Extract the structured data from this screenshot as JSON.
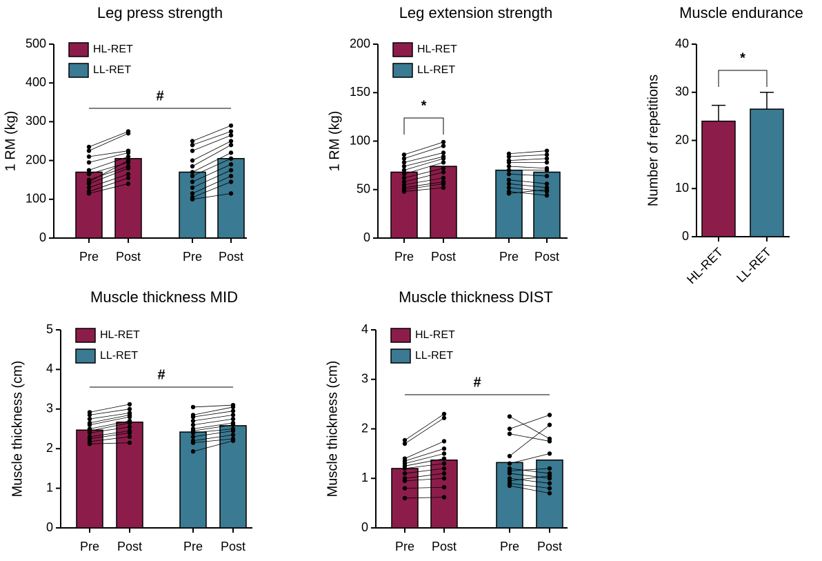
{
  "chart_data": [
    {
      "type": "bar",
      "title": "Leg press strength",
      "ylabel": "1 RM (kg)",
      "categories": [
        "Pre",
        "Post"
      ],
      "ylim": [
        0,
        500
      ],
      "yticks": [
        0,
        100,
        200,
        300,
        400,
        500
      ],
      "annotation": "#",
      "series": [
        {
          "name": "HL-RET",
          "color": "#8c1d4a",
          "values": [
            170,
            205
          ],
          "subjects": [
            [
              235,
              275
            ],
            [
              225,
              270
            ],
            [
              210,
              225
            ],
            [
              195,
              220
            ],
            [
              175,
              210
            ],
            [
              165,
              195
            ],
            [
              150,
              185
            ],
            [
              140,
              180
            ],
            [
              130,
              165
            ],
            [
              120,
              155
            ],
            [
              115,
              140
            ],
            [
              145,
              200
            ]
          ]
        },
        {
          "name": "LL-RET",
          "color": "#3a7a92",
          "values": [
            170,
            205
          ],
          "subjects": [
            [
              250,
              290
            ],
            [
              240,
              275
            ],
            [
              225,
              265
            ],
            [
              200,
              250
            ],
            [
              185,
              240
            ],
            [
              170,
              220
            ],
            [
              160,
              205
            ],
            [
              145,
              190
            ],
            [
              130,
              175
            ],
            [
              115,
              160
            ],
            [
              105,
              145
            ],
            [
              100,
              115
            ]
          ]
        }
      ]
    },
    {
      "type": "bar",
      "title": "Leg extension strength",
      "ylabel": "1 RM (kg)",
      "categories": [
        "Pre",
        "Post"
      ],
      "ylim": [
        0,
        200
      ],
      "yticks": [
        0,
        50,
        100,
        150,
        200
      ],
      "annotation": "*",
      "series": [
        {
          "name": "HL-RET",
          "color": "#8c1d4a",
          "values": [
            68,
            74
          ],
          "subjects": [
            [
              86,
              99
            ],
            [
              82,
              95
            ],
            [
              78,
              88
            ],
            [
              74,
              84
            ],
            [
              70,
              82
            ],
            [
              66,
              78
            ],
            [
              62,
              72
            ],
            [
              58,
              68
            ],
            [
              55,
              62
            ],
            [
              52,
              58
            ],
            [
              48,
              52
            ],
            [
              50,
              56
            ]
          ]
        },
        {
          "name": "LL-RET",
          "color": "#3a7a92",
          "values": [
            70,
            68
          ],
          "subjects": [
            [
              87,
              90
            ],
            [
              84,
              86
            ],
            [
              80,
              82
            ],
            [
              78,
              78
            ],
            [
              74,
              72
            ],
            [
              70,
              70
            ],
            [
              66,
              64
            ],
            [
              60,
              56
            ],
            [
              56,
              52
            ],
            [
              52,
              48
            ],
            [
              48,
              44
            ],
            [
              46,
              50
            ]
          ]
        }
      ]
    },
    {
      "type": "errorbar",
      "title": "Muscle endurance",
      "ylabel": "Number of repetitions",
      "categories": [
        "HL-RET",
        "LL-RET"
      ],
      "values": [
        24,
        26.5
      ],
      "errors": [
        3.3,
        3.5
      ],
      "colors": [
        "#8c1d4a",
        "#3a7a92"
      ],
      "ylim": [
        0,
        40
      ],
      "yticks": [
        0,
        10,
        20,
        30,
        40
      ],
      "annotation": "*"
    },
    {
      "type": "bar",
      "title": "Muscle thickness MID",
      "ylabel": "Muscle thickness (cm)",
      "categories": [
        "Pre",
        "Post"
      ],
      "ylim": [
        0,
        5
      ],
      "yticks": [
        0,
        1,
        2,
        3,
        4,
        5
      ],
      "annotation": "#",
      "series": [
        {
          "name": "HL-RET",
          "color": "#8c1d4a",
          "values": [
            2.47,
            2.67
          ],
          "subjects": [
            [
              2.92,
              3.12
            ],
            [
              2.85,
              3.0
            ],
            [
              2.75,
              2.9
            ],
            [
              2.65,
              2.85
            ],
            [
              2.6,
              2.8
            ],
            [
              2.5,
              2.7
            ],
            [
              2.45,
              2.65
            ],
            [
              2.4,
              2.55
            ],
            [
              2.3,
              2.45
            ],
            [
              2.25,
              2.4
            ],
            [
              2.18,
              2.3
            ],
            [
              2.12,
              2.15
            ]
          ]
        },
        {
          "name": "LL-RET",
          "color": "#3a7a92",
          "values": [
            2.42,
            2.58
          ],
          "subjects": [
            [
              3.05,
              3.1
            ],
            [
              2.85,
              3.05
            ],
            [
              2.8,
              2.95
            ],
            [
              2.7,
              2.85
            ],
            [
              2.6,
              2.75
            ],
            [
              2.5,
              2.65
            ],
            [
              2.45,
              2.6
            ],
            [
              2.4,
              2.5
            ],
            [
              2.3,
              2.45
            ],
            [
              2.2,
              2.35
            ],
            [
              2.15,
              2.25
            ],
            [
              1.93,
              2.2
            ]
          ]
        }
      ]
    },
    {
      "type": "bar",
      "title": "Muscle thickness DIST",
      "ylabel": "Muscle thickness (cm)",
      "categories": [
        "Pre",
        "Post"
      ],
      "ylim": [
        0,
        4
      ],
      "yticks": [
        0,
        1,
        2,
        3,
        4
      ],
      "annotation": "#",
      "series": [
        {
          "name": "HL-RET",
          "color": "#8c1d4a",
          "values": [
            1.2,
            1.37
          ],
          "subjects": [
            [
              1.77,
              2.3
            ],
            [
              1.7,
              2.22
            ],
            [
              1.4,
              1.75
            ],
            [
              1.35,
              1.6
            ],
            [
              1.3,
              1.5
            ],
            [
              1.25,
              1.4
            ],
            [
              1.2,
              1.3
            ],
            [
              1.1,
              1.2
            ],
            [
              1.0,
              1.1
            ],
            [
              0.95,
              1.0
            ],
            [
              0.8,
              0.82
            ],
            [
              0.6,
              0.62
            ]
          ]
        },
        {
          "name": "LL-RET",
          "color": "#3a7a92",
          "values": [
            1.32,
            1.37
          ],
          "subjects": [
            [
              2.25,
              1.8
            ],
            [
              2.0,
              2.28
            ],
            [
              1.9,
              1.75
            ],
            [
              1.45,
              2.08
            ],
            [
              1.3,
              1.5
            ],
            [
              1.2,
              1.1
            ],
            [
              1.15,
              1.2
            ],
            [
              1.1,
              1.0
            ],
            [
              1.0,
              0.9
            ],
            [
              0.95,
              1.05
            ],
            [
              0.9,
              0.8
            ],
            [
              0.85,
              0.7
            ]
          ]
        }
      ]
    }
  ]
}
